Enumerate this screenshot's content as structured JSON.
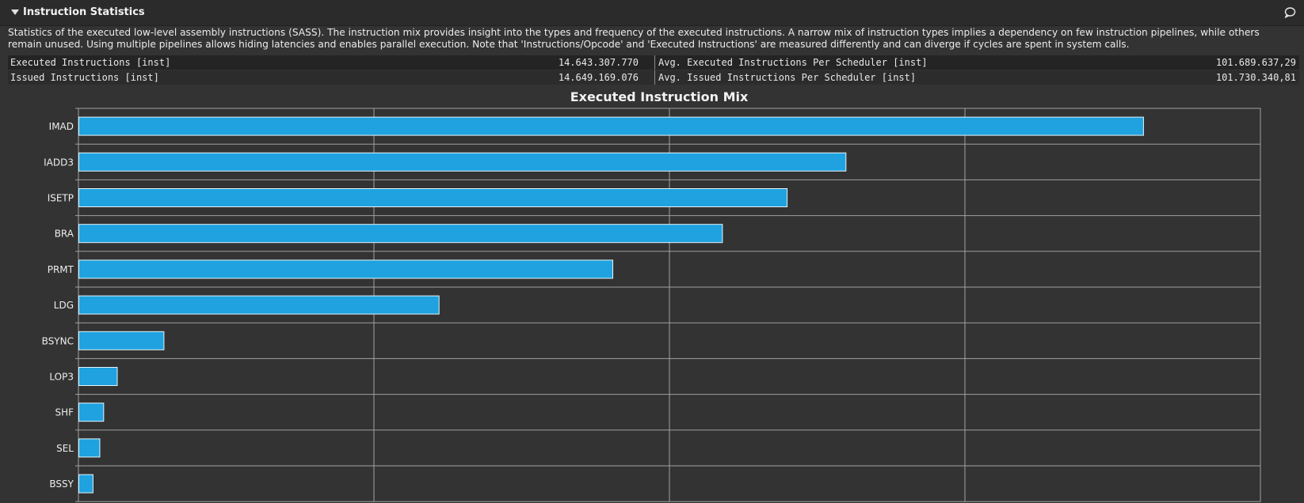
{
  "header": {
    "title": "Instruction Statistics",
    "collapse_icon": "triangle-down-icon",
    "comment_icon": "comment-icon"
  },
  "description": "Statistics of the executed low-level assembly instructions (SASS). The instruction mix provides insight into the types and frequency of the executed instructions. A narrow mix of instruction types implies a dependency on few instruction pipelines, while others remain unused. Using multiple pipelines allows hiding latencies and enables parallel execution. Note that 'Instructions/Opcode' and 'Executed Instructions' are measured differently and can diverge if cycles are spent in system calls.",
  "stats": [
    {
      "label": "Executed Instructions [inst]",
      "value": "14.643.307.770",
      "label2": "Avg. Executed Instructions Per Scheduler [inst]",
      "value2": "101.689.637,29"
    },
    {
      "label": "Issued Instructions [inst]",
      "value": "14.649.169.076",
      "label2": "Avg. Issued Instructions Per Scheduler [inst]",
      "value2": "101.730.340,81"
    }
  ],
  "colors": {
    "bar_fill": "#1fa2df",
    "bar_stroke": "#e6f4fb",
    "grid": "#a0a0a0",
    "background": "#333333"
  },
  "chart_data": {
    "type": "bar",
    "orientation": "horizontal",
    "title": "Executed Instruction Mix",
    "categories": [
      "IMAD",
      "IADD3",
      "ISETP",
      "BRA",
      "PRMT",
      "LDG",
      "BSYNC",
      "LOP3",
      "SHF",
      "SEL",
      "BSSY"
    ],
    "values": [
      3.603,
      2.596,
      2.397,
      2.178,
      1.807,
      1.219,
      0.288,
      0.13,
      0.084,
      0.071,
      0.048
    ],
    "xlim": [
      0,
      4
    ],
    "grid": true
  }
}
